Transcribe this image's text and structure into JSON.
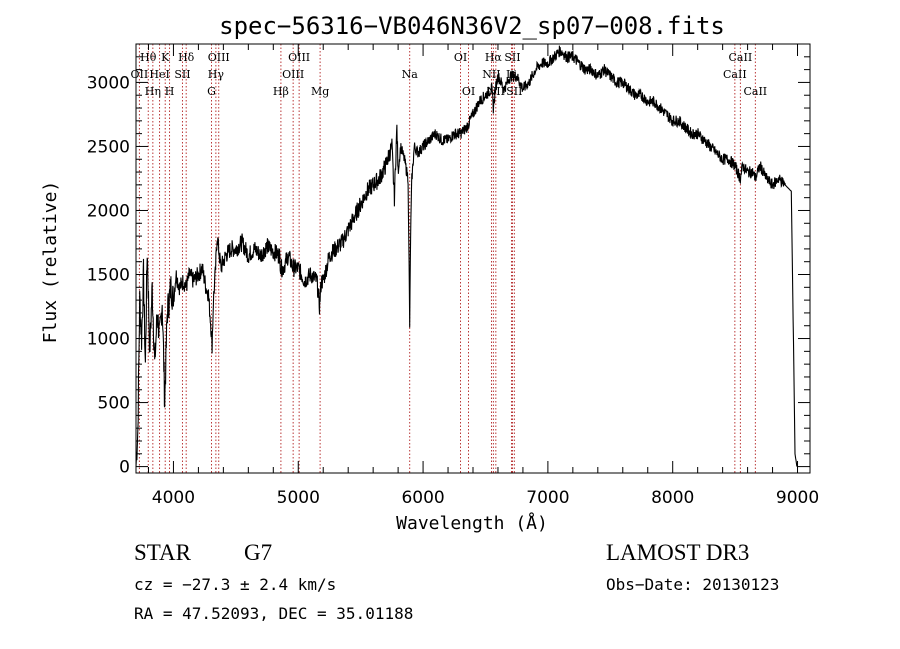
{
  "chart_data": {
    "type": "line",
    "title": "spec−56316−VB046N36V2_sp07−008.fits",
    "xlabel": "Wavelength (Å)",
    "ylabel": "Flux (relative)",
    "xlim": [
      3700,
      9100
    ],
    "ylim": [
      -50,
      3300
    ],
    "x_ticks": [
      4000,
      5000,
      6000,
      7000,
      8000,
      9000
    ],
    "y_ticks": [
      0,
      500,
      1000,
      1500,
      2000,
      2500,
      3000
    ],
    "grid": false,
    "series": [
      {
        "name": "flux",
        "x": [
          3700,
          3715,
          3730,
          3745,
          3760,
          3775,
          3790,
          3810,
          3830,
          3850,
          3870,
          3890,
          3910,
          3930,
          3950,
          3965,
          3980,
          4000,
          4020,
          4050,
          4080,
          4100,
          4130,
          4160,
          4200,
          4230,
          4260,
          4280,
          4300,
          4310,
          4320,
          4335,
          4350,
          4380,
          4420,
          4460,
          4500,
          4550,
          4600,
          4650,
          4700,
          4750,
          4800,
          4850,
          4861,
          4880,
          4920,
          4960,
          5000,
          5050,
          5100,
          5150,
          5170,
          5185,
          5200,
          5250,
          5300,
          5350,
          5400,
          5450,
          5500,
          5550,
          5600,
          5650,
          5700,
          5750,
          5770,
          5790,
          5800,
          5820,
          5850,
          5880,
          5893,
          5900,
          5910,
          5930,
          5960,
          6000,
          6050,
          6100,
          6150,
          6200,
          6250,
          6300,
          6350,
          6400,
          6450,
          6500,
          6550,
          6563,
          6580,
          6600,
          6650,
          6700,
          6750,
          6800,
          6850,
          6900,
          6950,
          7000,
          7050,
          7100,
          7150,
          7200,
          7250,
          7300,
          7350,
          7400,
          7450,
          7500,
          7550,
          7600,
          7650,
          7700,
          7750,
          7800,
          7850,
          7900,
          7950,
          8000,
          8050,
          8100,
          8150,
          8200,
          8250,
          8300,
          8350,
          8400,
          8450,
          8498,
          8520,
          8542,
          8560,
          8600,
          8640,
          8662,
          8700,
          8750,
          8800,
          8850,
          8900,
          8950,
          8960,
          8980,
          8995
        ],
        "y": [
          0,
          300,
          1300,
          1000,
          1500,
          800,
          1700,
          900,
          1400,
          800,
          1200,
          1000,
          1300,
          500,
          1200,
          1300,
          1400,
          1300,
          1500,
          1400,
          1450,
          1400,
          1500,
          1450,
          1500,
          1550,
          1400,
          1350,
          1100,
          950,
          1300,
          1500,
          1800,
          1550,
          1650,
          1700,
          1700,
          1750,
          1650,
          1700,
          1650,
          1720,
          1680,
          1650,
          1550,
          1550,
          1650,
          1550,
          1550,
          1450,
          1500,
          1450,
          1250,
          1450,
          1450,
          1650,
          1700,
          1750,
          1850,
          1950,
          2050,
          2150,
          2200,
          2250,
          2350,
          2500,
          2100,
          2650,
          2300,
          2500,
          2400,
          2250,
          1100,
          1800,
          2250,
          2500,
          2450,
          2500,
          2550,
          2600,
          2550,
          2550,
          2600,
          2600,
          2650,
          2750,
          2850,
          2900,
          2950,
          2800,
          2950,
          3050,
          2950,
          3050,
          3050,
          2950,
          3000,
          3100,
          3150,
          3150,
          3200,
          3250,
          3200,
          3200,
          3150,
          3100,
          3100,
          3050,
          3100,
          3050,
          3000,
          3000,
          2950,
          2900,
          2900,
          2850,
          2850,
          2800,
          2750,
          2700,
          2700,
          2650,
          2600,
          2600,
          2550,
          2500,
          2450,
          2400,
          2400,
          2350,
          2300,
          2250,
          2350,
          2300,
          2300,
          2250,
          2350,
          2250,
          2200,
          2250,
          2200,
          2150,
          1500,
          100,
          0
        ]
      }
    ],
    "line_markers": [
      {
        "name": "Hθ",
        "wl": 3798,
        "row": 1
      },
      {
        "name": "OII",
        "wl": 3727,
        "row": 2
      },
      {
        "name": "Hη",
        "wl": 3835,
        "row": 3
      },
      {
        "name": "K",
        "wl": 3934,
        "row": 1
      },
      {
        "name": "HeI",
        "wl": 3889,
        "row": 2
      },
      {
        "name": "H",
        "wl": 3969,
        "row": 3
      },
      {
        "name": "SII",
        "wl": 4072,
        "row": 2
      },
      {
        "name": "Hδ",
        "wl": 4102,
        "row": 1
      },
      {
        "name": "OIII",
        "wl": 4363,
        "row": 1
      },
      {
        "name": "Hγ",
        "wl": 4340,
        "row": 2
      },
      {
        "name": "G",
        "wl": 4305,
        "row": 3
      },
      {
        "name": "Hβ",
        "wl": 4861,
        "row": 3
      },
      {
        "name": "OIII",
        "wl": 5007,
        "row": 1
      },
      {
        "name": "OIII",
        "wl": 4959,
        "row": 2
      },
      {
        "name": "Mg",
        "wl": 5175,
        "row": 3
      },
      {
        "name": "Na",
        "wl": 5893,
        "row": 2
      },
      {
        "name": "OI",
        "wl": 6300,
        "row": 1
      },
      {
        "name": "OI",
        "wl": 6364,
        "row": 3
      },
      {
        "name": "Hα",
        "wl": 6563,
        "row": 1
      },
      {
        "name": "NII",
        "wl": 6548,
        "row": 2
      },
      {
        "name": "NII",
        "wl": 6583,
        "row": 3
      },
      {
        "name": "SII",
        "wl": 6716,
        "row": 1
      },
      {
        "name": "Li",
        "wl": 6708,
        "row": 2
      },
      {
        "name": "SII",
        "wl": 6731,
        "row": 3
      },
      {
        "name": "CaII",
        "wl": 8542,
        "row": 1
      },
      {
        "name": "CaII",
        "wl": 8498,
        "row": 2
      },
      {
        "name": "CaII",
        "wl": 8662,
        "row": 3
      }
    ]
  },
  "info": {
    "class": "STAR",
    "subclass": "G7",
    "survey": "LAMOST DR3",
    "cz": "cz = −27.3 ± 2.4 km/s",
    "obs_date": "Obs−Date: 20130123",
    "radec": "RA =  47.52093, DEC =  35.01188"
  }
}
